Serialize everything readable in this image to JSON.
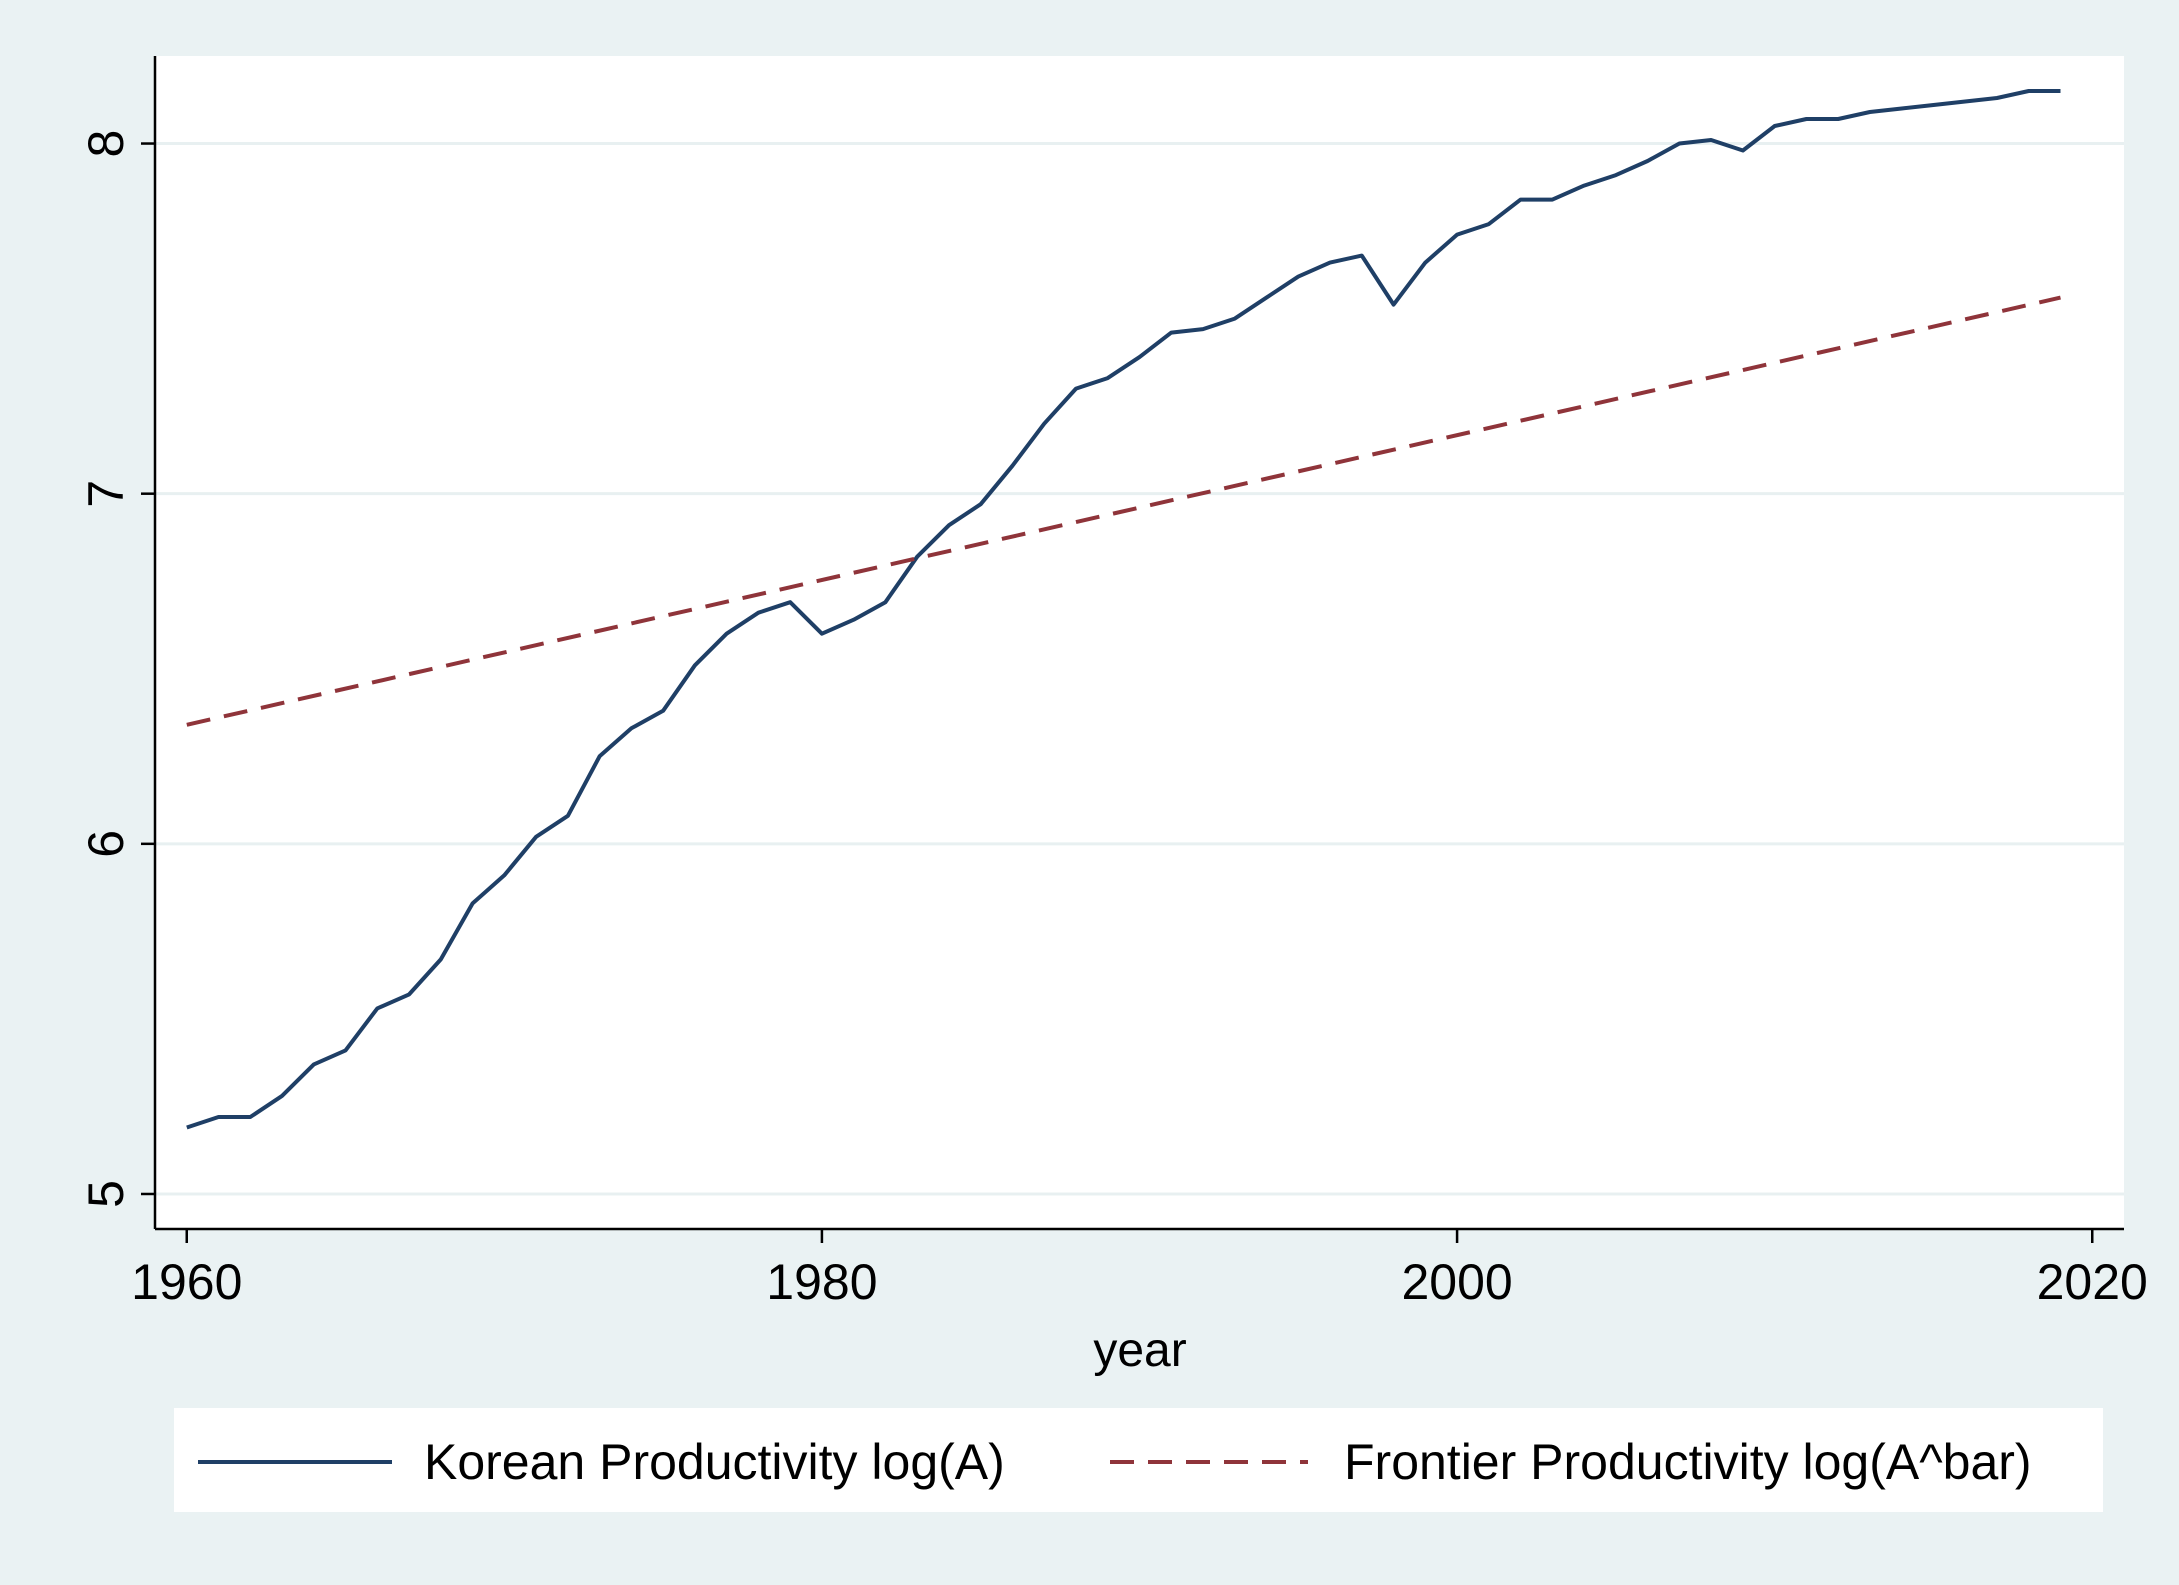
{
  "chart_data": {
    "type": "line",
    "xlabel": "year",
    "ylabel": "",
    "xlim": [
      1959,
      2021
    ],
    "ylim": [
      4.9,
      8.25
    ],
    "xticks": [
      1960,
      1980,
      2000,
      2020
    ],
    "yticks": [
      5,
      6,
      7,
      8
    ],
    "grid": "horizontal",
    "legend_position": "bottom",
    "series": [
      {
        "name": "Korean Productivity log(A)",
        "style": "solid",
        "color": "#1f3f66",
        "x": [
          1960,
          1961,
          1962,
          1963,
          1964,
          1965,
          1966,
          1967,
          1968,
          1969,
          1970,
          1971,
          1972,
          1973,
          1974,
          1975,
          1976,
          1977,
          1978,
          1979,
          1980,
          1981,
          1982,
          1983,
          1984,
          1985,
          1986,
          1987,
          1988,
          1989,
          1990,
          1991,
          1992,
          1993,
          1994,
          1995,
          1996,
          1997,
          1998,
          1999,
          2000,
          2001,
          2002,
          2003,
          2004,
          2005,
          2006,
          2007,
          2008,
          2009,
          2010,
          2011,
          2012,
          2013,
          2014,
          2015,
          2016,
          2017,
          2018,
          2019
        ],
        "values": [
          5.19,
          5.22,
          5.22,
          5.28,
          5.37,
          5.41,
          5.53,
          5.57,
          5.67,
          5.83,
          5.91,
          6.02,
          6.08,
          6.25,
          6.33,
          6.38,
          6.51,
          6.6,
          6.66,
          6.69,
          6.6,
          6.64,
          6.69,
          6.82,
          6.91,
          6.97,
          7.08,
          7.2,
          7.3,
          7.33,
          7.39,
          7.46,
          7.47,
          7.5,
          7.56,
          7.62,
          7.66,
          7.68,
          7.54,
          7.66,
          7.74,
          7.77,
          7.84,
          7.84,
          7.88,
          7.91,
          7.95,
          8.0,
          8.01,
          7.98,
          8.05,
          8.07,
          8.07,
          8.09,
          8.1,
          8.11,
          8.12,
          8.13,
          8.15,
          8.15
        ]
      },
      {
        "name": "Frontier Productivity log(A^bar)",
        "style": "dashed",
        "color": "#8f343a",
        "x": [
          1960,
          2019
        ],
        "values": [
          6.34,
          7.56
        ]
      }
    ]
  }
}
